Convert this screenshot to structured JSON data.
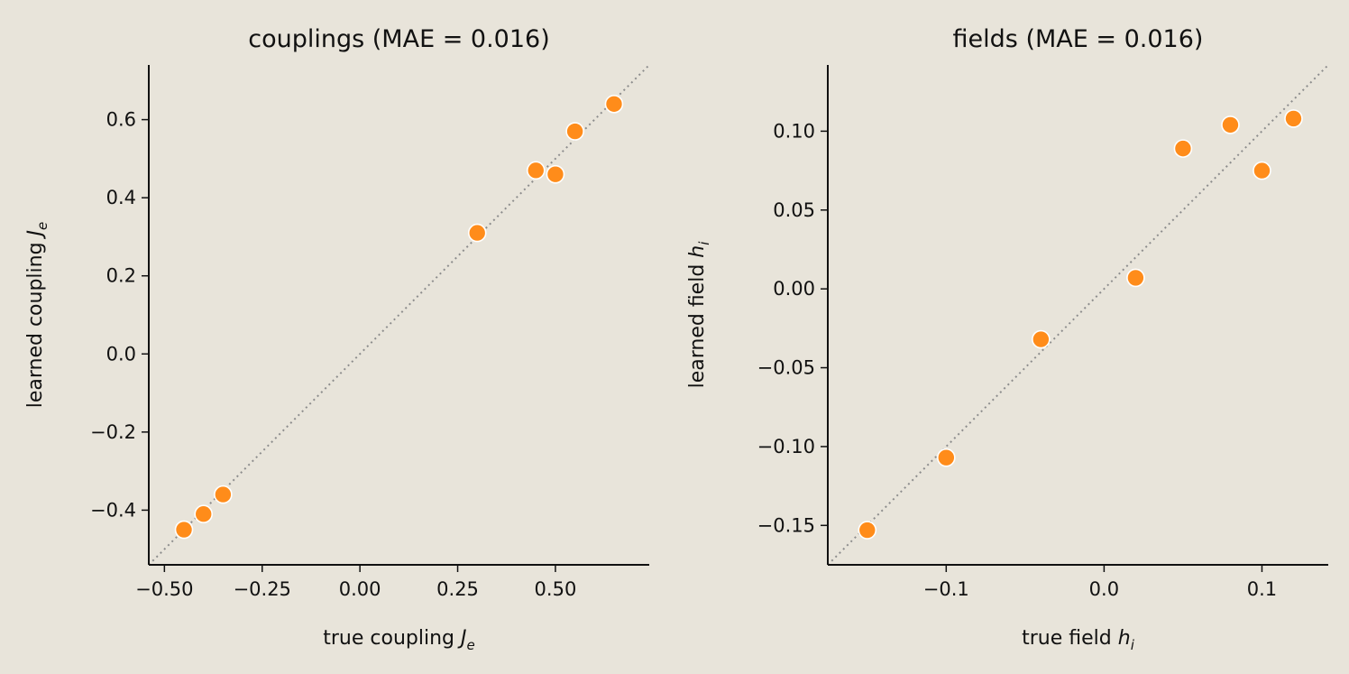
{
  "style": {
    "background_color": "#e8e4da",
    "axis_color": "#111111",
    "diagonal_color": "#8d8d8d",
    "point_color": "#ff8c1a",
    "point_edge_color": "#ffffff"
  },
  "chart_data": [
    {
      "type": "scatter",
      "title": "couplings  (MAE = 0.016)",
      "xlabel": "true coupling J_e",
      "ylabel": "learned coupling J_e",
      "xlim": [
        -0.54,
        0.74
      ],
      "ylim": [
        -0.54,
        0.74
      ],
      "xticks": [
        -0.5,
        -0.25,
        0.0,
        0.25,
        0.5
      ],
      "xtick_labels": [
        "−0.50",
        "−0.25",
        "0.00",
        "0.25",
        "0.50"
      ],
      "yticks": [
        -0.4,
        -0.2,
        0.0,
        0.2,
        0.4,
        0.6
      ],
      "ytick_labels": [
        "−0.4",
        "−0.2",
        "0.0",
        "0.2",
        "0.4",
        "0.6"
      ],
      "points": [
        {
          "x": -0.45,
          "y": -0.45
        },
        {
          "x": -0.4,
          "y": -0.41
        },
        {
          "x": -0.35,
          "y": -0.36
        },
        {
          "x": 0.3,
          "y": 0.31
        },
        {
          "x": 0.45,
          "y": 0.47
        },
        {
          "x": 0.5,
          "y": 0.46
        },
        {
          "x": 0.55,
          "y": 0.57
        },
        {
          "x": 0.65,
          "y": 0.64
        }
      ],
      "diagonal": true,
      "grid": false
    },
    {
      "type": "scatter",
      "title": "fields  (MAE = 0.016)",
      "xlabel": "true field h_i",
      "ylabel": "learned field h_i",
      "xlim": [
        -0.175,
        0.142
      ],
      "ylim": [
        -0.175,
        0.142
      ],
      "xticks": [
        -0.1,
        0.0,
        0.1
      ],
      "xtick_labels": [
        "−0.1",
        "0.0",
        "0.1"
      ],
      "yticks": [
        -0.15,
        -0.1,
        -0.05,
        0.0,
        0.05,
        0.1
      ],
      "ytick_labels": [
        "−0.15",
        "−0.10",
        "−0.05",
        "0.00",
        "0.05",
        "0.10"
      ],
      "points": [
        {
          "x": -0.15,
          "y": -0.153
        },
        {
          "x": -0.1,
          "y": -0.107
        },
        {
          "x": -0.04,
          "y": -0.032
        },
        {
          "x": 0.02,
          "y": 0.007
        },
        {
          "x": 0.05,
          "y": 0.089
        },
        {
          "x": 0.08,
          "y": 0.104
        },
        {
          "x": 0.1,
          "y": 0.075
        },
        {
          "x": 0.12,
          "y": 0.108
        }
      ],
      "diagonal": true,
      "grid": false
    }
  ]
}
